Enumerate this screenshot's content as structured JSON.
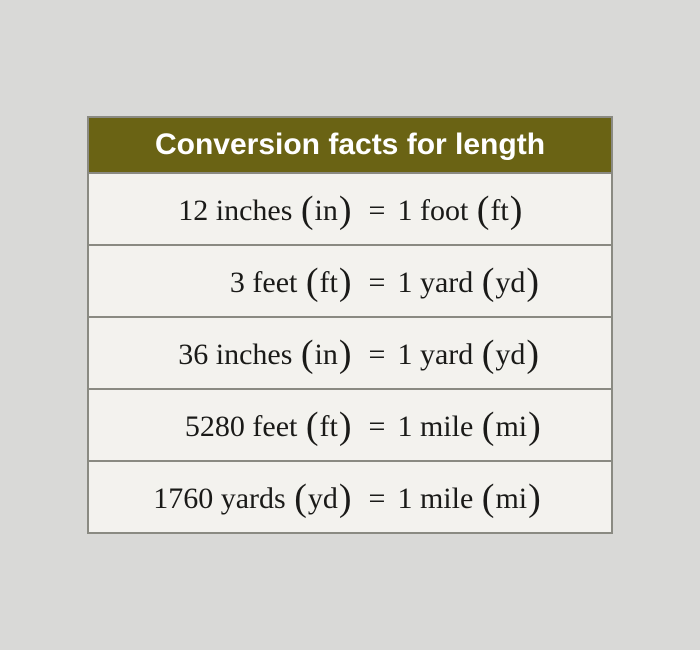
{
  "table": {
    "type": "table",
    "title": "Conversion facts for length",
    "header_bg": "#6a6314",
    "header_fg": "#ffffff",
    "cell_bg": "#f3f2ee",
    "border_color": "#8a8a82",
    "title_fontsize": 30,
    "cell_fontsize": 30,
    "rows": [
      {
        "lhs_qty": "12",
        "lhs_unit": "inches",
        "lhs_abbr": "in",
        "rhs_qty": "1",
        "rhs_unit": "foot",
        "rhs_abbr": "ft"
      },
      {
        "lhs_qty": "3",
        "lhs_unit": "feet",
        "lhs_abbr": "ft",
        "rhs_qty": "1",
        "rhs_unit": "yard",
        "rhs_abbr": "yd"
      },
      {
        "lhs_qty": "36",
        "lhs_unit": "inches",
        "lhs_abbr": "in",
        "rhs_qty": "1",
        "rhs_unit": "yard",
        "rhs_abbr": "yd"
      },
      {
        "lhs_qty": "5280",
        "lhs_unit": "feet",
        "lhs_abbr": "ft",
        "rhs_qty": "1",
        "rhs_unit": "mile",
        "rhs_abbr": "mi"
      },
      {
        "lhs_qty": "1760",
        "lhs_unit": "yards",
        "lhs_abbr": "yd",
        "rhs_qty": "1",
        "rhs_unit": "mile",
        "rhs_abbr": "mi"
      }
    ],
    "equals_sign": "="
  },
  "page_bg": "#d9d9d7"
}
